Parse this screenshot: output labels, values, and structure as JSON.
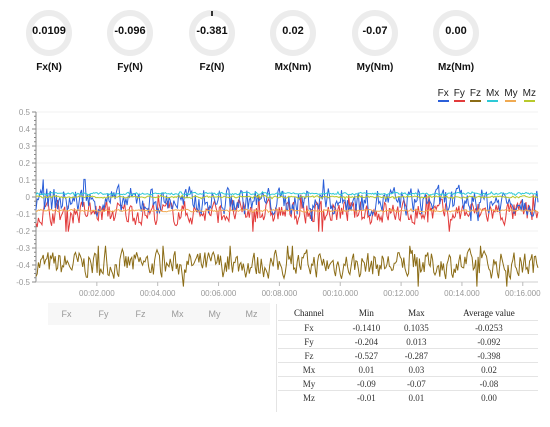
{
  "gauges": [
    {
      "label": "Fx(N)",
      "value": "0.0109"
    },
    {
      "label": "Fy(N)",
      "value": "-0.096"
    },
    {
      "label": "Fz(N)",
      "value": "-0.381"
    },
    {
      "label": "Mx(Nm)",
      "value": "0.02"
    },
    {
      "label": "My(Nm)",
      "value": "-0.07"
    },
    {
      "label": "Mz(Nm)",
      "value": "0.00"
    }
  ],
  "legend": [
    {
      "label": "Fx",
      "color": "#2b5fd9"
    },
    {
      "label": "Fy",
      "color": "#e23b3b"
    },
    {
      "label": "Fz",
      "color": "#8b6c16"
    },
    {
      "label": "Mx",
      "color": "#2ec9d6"
    },
    {
      "label": "My",
      "color": "#f0aa52"
    },
    {
      "label": "Mz",
      "color": "#b8c92c"
    }
  ],
  "tabs": [
    "Fx",
    "Fy",
    "Fz",
    "Mx",
    "My",
    "Mz"
  ],
  "summary": {
    "headers": [
      "Channel",
      "Min",
      "Max",
      "Average value"
    ],
    "rows": [
      [
        "Fx",
        "-0.1410",
        "0.1035",
        "-0.0253"
      ],
      [
        "Fy",
        "-0.204",
        "0.013",
        "-0.092"
      ],
      [
        "Fz",
        "-0.527",
        "-0.287",
        "-0.398"
      ],
      [
        "Mx",
        "0.01",
        "0.03",
        "0.02"
      ],
      [
        "My",
        "-0.09",
        "-0.07",
        "-0.08"
      ],
      [
        "Mz",
        "-0.01",
        "0.01",
        "0.00"
      ]
    ]
  },
  "chart_data": {
    "type": "line",
    "ylim": [
      -0.5,
      0.5
    ],
    "yticks": [
      "0.5",
      "0.4",
      "0.3",
      "0.2",
      "0.1",
      "0",
      "-0.1",
      "-0.2",
      "-0.3",
      "-0.4",
      "-0.5"
    ],
    "xticks": [
      "00:02.000",
      "00:04.000",
      "00:06.000",
      "00:08.000",
      "00:10.000",
      "00:12.000",
      "00:14.000",
      "00:16.000"
    ],
    "xlim": [
      "00:00.000",
      "00:16.500"
    ],
    "series": [
      {
        "name": "Fx",
        "color": "#2b5fd9",
        "mean": -0.0253,
        "min": -0.141,
        "max": 0.1035
      },
      {
        "name": "Fy",
        "color": "#e23b3b",
        "mean": -0.092,
        "min": -0.204,
        "max": 0.013
      },
      {
        "name": "Fz",
        "color": "#8b6c16",
        "mean": -0.398,
        "min": -0.527,
        "max": -0.287
      },
      {
        "name": "Mx",
        "color": "#2ec9d6",
        "mean": 0.02,
        "min": 0.01,
        "max": 0.03
      },
      {
        "name": "My",
        "color": "#f0aa52",
        "mean": -0.08,
        "min": -0.09,
        "max": -0.07
      },
      {
        "name": "Mz",
        "color": "#b8c92c",
        "mean": 0.0,
        "min": -0.01,
        "max": 0.01
      }
    ]
  }
}
